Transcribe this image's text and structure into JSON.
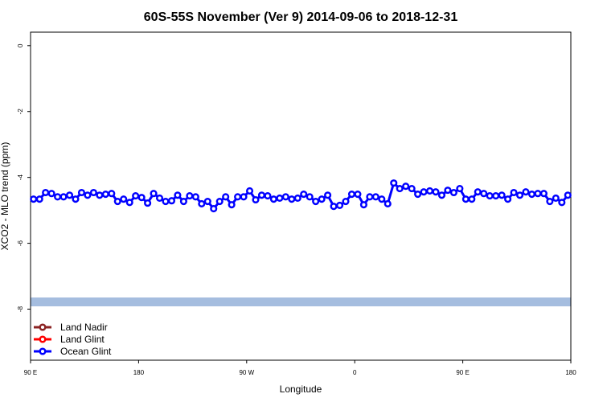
{
  "chart_data": {
    "type": "line",
    "title": "60S-55S November (Ver 9)   2014-09-06 to 2018-12-31",
    "x_label": "Longitude",
    "y_label": "XCO2 - MLO trend (ppm)",
    "xlim": [
      90,
      540
    ],
    "xticks": [
      {
        "value": 90,
        "label": "90 E"
      },
      180,
      {
        "value": 270,
        "label": "90 W"
      },
      {
        "value": 360,
        "label": "0"
      },
      {
        "value": 450,
        "label": "90 E"
      },
      {
        "value": 540,
        "label": "180"
      }
    ],
    "ylim": [
      -9.55,
      0.41
    ],
    "yticks": [
      0,
      -2,
      -4,
      -6,
      -8
    ],
    "legend": "bottom-left",
    "series": [
      {
        "name": "Land Nadir",
        "color": "#8b2323",
        "x": [],
        "values": []
      },
      {
        "name": "Land Glint",
        "color": "#ff0000",
        "x": [],
        "values": []
      },
      {
        "name": "Ocean Glint",
        "color": "#0000ff",
        "x": [
          92.5,
          97.5,
          102.5,
          107.5,
          112.5,
          117.5,
          122.5,
          127.5,
          132.5,
          137.5,
          142.5,
          147.5,
          152.5,
          157.5,
          162.5,
          167.5,
          172.5,
          177.5,
          182.5,
          187.5,
          192.5,
          197.5,
          202.5,
          207.5,
          212.5,
          217.5,
          222.5,
          227.5,
          232.5,
          237.5,
          242.5,
          247.5,
          252.5,
          257.5,
          262.5,
          267.5,
          272.5,
          277.5,
          282.5,
          287.5,
          292.5,
          297.5,
          302.5,
          307.5,
          312.5,
          317.5,
          322.5,
          327.5,
          332.5,
          337.5,
          342.5,
          347.5,
          352.5,
          357.5,
          362.5,
          367.5,
          372.5,
          377.5,
          382.5,
          387.5,
          392.5,
          397.5,
          402.5,
          407.5,
          412.5,
          417.5,
          422.5,
          427.5,
          432.5,
          437.5,
          442.5,
          447.5,
          452.5,
          457.5,
          462.5,
          467.5,
          472.5,
          477.5,
          482.5,
          487.5,
          492.5,
          497.5,
          502.5,
          507.5,
          512.5,
          517.5,
          522.5,
          527.5,
          532.5,
          537.5
        ],
        "values": [
          -4.66,
          -4.66,
          -4.46,
          -4.49,
          -4.59,
          -4.59,
          -4.54,
          -4.66,
          -4.46,
          -4.54,
          -4.46,
          -4.54,
          -4.51,
          -4.49,
          -4.73,
          -4.66,
          -4.76,
          -4.56,
          -4.61,
          -4.78,
          -4.49,
          -4.63,
          -4.73,
          -4.71,
          -4.54,
          -4.73,
          -4.56,
          -4.59,
          -4.8,
          -4.73,
          -4.95,
          -4.73,
          -4.59,
          -4.83,
          -4.59,
          -4.59,
          -4.41,
          -4.68,
          -4.54,
          -4.56,
          -4.66,
          -4.63,
          -4.59,
          -4.66,
          -4.63,
          -4.51,
          -4.59,
          -4.73,
          -4.66,
          -4.54,
          -4.88,
          -4.85,
          -4.73,
          -4.51,
          -4.51,
          -4.83,
          -4.59,
          -4.59,
          -4.66,
          -4.8,
          -4.17,
          -4.34,
          -4.27,
          -4.34,
          -4.51,
          -4.44,
          -4.41,
          -4.44,
          -4.54,
          -4.39,
          -4.46,
          -4.34,
          -4.66,
          -4.66,
          -4.44,
          -4.49,
          -4.56,
          -4.56,
          -4.54,
          -4.66,
          -4.46,
          -4.54,
          -4.44,
          -4.51,
          -4.49,
          -4.49,
          -4.73,
          -4.63,
          -4.76,
          -4.54
        ]
      }
    ]
  }
}
